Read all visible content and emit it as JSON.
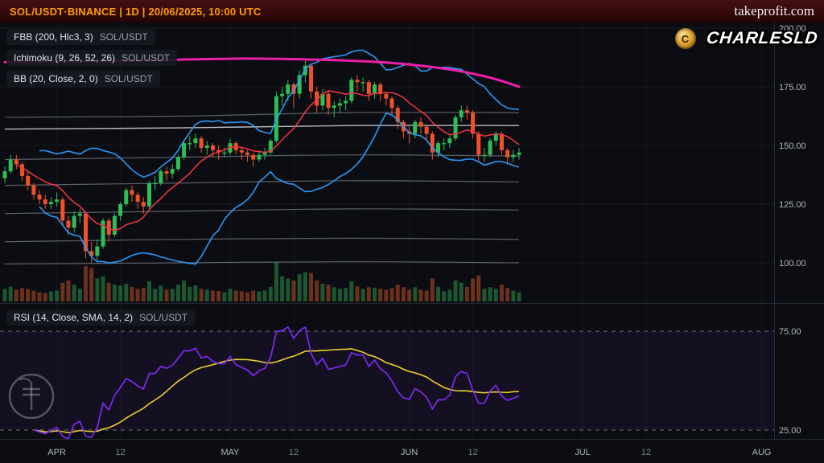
{
  "header": {
    "title": "SOL/USDT·BINANCE | 1D | 20/06/2025, 10:00 UTC",
    "brand": "takeprofit.com"
  },
  "watermarks": {
    "trader": "CHARLESLD",
    "trader_avatar_icon": "gold-coin",
    "brand_logo_icon": "takeprofit-circle-monogram"
  },
  "price_pane": {
    "legends": [
      {
        "label": "FBB (200, Hlc3, 3)",
        "pair": "SOL/USDT"
      },
      {
        "label": "Ichimoku (9, 26, 52, 26)",
        "pair": "SOL/USDT"
      },
      {
        "label": "BB (20, Close, 2, 0)",
        "pair": "SOL/USDT"
      }
    ]
  },
  "rsi_pane": {
    "legend": {
      "label": "RSI (14, Close, SMA, 14, 2)",
      "pair": "SOL/USDT"
    }
  },
  "chart_data": {
    "type": "candlestick",
    "symbol": "SOL/USDT",
    "exchange": "BINANCE",
    "interval": "1D",
    "timestamp_shown": "20/06/2025, 10:00 UTC",
    "start_date": "2025-03-23",
    "price_axis": {
      "labels": [
        "200.00",
        "175.00",
        "150.00",
        "125.00",
        "100.00"
      ],
      "values": [
        200,
        175,
        150,
        125,
        100
      ]
    },
    "rsi_axis": {
      "labels": [
        "75.00",
        "25.00"
      ],
      "values": [
        75,
        25
      ]
    },
    "time_ticks": [
      {
        "label": "APR",
        "day": 9,
        "major": true
      },
      {
        "label": "12",
        "day": 20,
        "major": false
      },
      {
        "label": "MAY",
        "day": 39,
        "major": true
      },
      {
        "label": "12",
        "day": 50,
        "major": false
      },
      {
        "label": "JUN",
        "day": 70,
        "major": true
      },
      {
        "label": "12",
        "day": 81,
        "major": false
      },
      {
        "label": "JUL",
        "day": 100,
        "major": true
      },
      {
        "label": "12",
        "day": 111,
        "major": false
      },
      {
        "label": "AUG",
        "day": 131,
        "major": true
      }
    ],
    "candles": [
      [
        136,
        141,
        134,
        139
      ],
      [
        139,
        146,
        138,
        144
      ],
      [
        144,
        146,
        140,
        142
      ],
      [
        142,
        143,
        135,
        137
      ],
      [
        137,
        139,
        131,
        133
      ],
      [
        133,
        134,
        127,
        129
      ],
      [
        129,
        131,
        125,
        127
      ],
      [
        127,
        129,
        123,
        125
      ],
      [
        125,
        128,
        123,
        126
      ],
      [
        126,
        130,
        124,
        127
      ],
      [
        127,
        128,
        116,
        118
      ],
      [
        118,
        120,
        112,
        115
      ],
      [
        115,
        122,
        113,
        120
      ],
      [
        120,
        123,
        117,
        121
      ],
      [
        121,
        122,
        102,
        105
      ],
      [
        105,
        109,
        100,
        103
      ],
      [
        103,
        110,
        101,
        107
      ],
      [
        107,
        119,
        106,
        118
      ],
      [
        118,
        119,
        109,
        112
      ],
      [
        112,
        121,
        111,
        120
      ],
      [
        120,
        126,
        118,
        125
      ],
      [
        125,
        132,
        124,
        131
      ],
      [
        131,
        133,
        126,
        129
      ],
      [
        129,
        130,
        123,
        126
      ],
      [
        126,
        128,
        121,
        124
      ],
      [
        124,
        135,
        123,
        134
      ],
      [
        134,
        137,
        131,
        134
      ],
      [
        134,
        140,
        133,
        139
      ],
      [
        139,
        141,
        135,
        138
      ],
      [
        138,
        142,
        136,
        140
      ],
      [
        140,
        146,
        139,
        145
      ],
      [
        145,
        152,
        144,
        151
      ],
      [
        151,
        154,
        148,
        151
      ],
      [
        151,
        155,
        149,
        153
      ],
      [
        153,
        154,
        147,
        149
      ],
      [
        149,
        152,
        146,
        150
      ],
      [
        150,
        151,
        145,
        148
      ],
      [
        148,
        150,
        144,
        147
      ],
      [
        147,
        149,
        145,
        147
      ],
      [
        147,
        153,
        146,
        151
      ],
      [
        151,
        152,
        146,
        148
      ],
      [
        148,
        149,
        144,
        147
      ],
      [
        147,
        148,
        143,
        146
      ],
      [
        146,
        147,
        141,
        144
      ],
      [
        144,
        148,
        143,
        146
      ],
      [
        146,
        149,
        144,
        147
      ],
      [
        147,
        153,
        146,
        152
      ],
      [
        152,
        173,
        151,
        171
      ],
      [
        171,
        175,
        167,
        172
      ],
      [
        172,
        178,
        169,
        176
      ],
      [
        176,
        177,
        166,
        172
      ],
      [
        172,
        182,
        170,
        180
      ],
      [
        180,
        186,
        177,
        184
      ],
      [
        184,
        185,
        170,
        173
      ],
      [
        173,
        175,
        164,
        167
      ],
      [
        167,
        174,
        165,
        172
      ],
      [
        172,
        173,
        163,
        166
      ],
      [
        166,
        169,
        162,
        167
      ],
      [
        167,
        170,
        164,
        168
      ],
      [
        168,
        171,
        165,
        169
      ],
      [
        169,
        179,
        168,
        178
      ],
      [
        178,
        180,
        173,
        177
      ],
      [
        177,
        179,
        173,
        177
      ],
      [
        177,
        178,
        169,
        172
      ],
      [
        172,
        177,
        170,
        176
      ],
      [
        176,
        177,
        169,
        172
      ],
      [
        172,
        173,
        167,
        170
      ],
      [
        170,
        171,
        163,
        166
      ],
      [
        166,
        167,
        157,
        160
      ],
      [
        160,
        161,
        153,
        156
      ],
      [
        156,
        158,
        151,
        155
      ],
      [
        155,
        161,
        153,
        160
      ],
      [
        160,
        162,
        155,
        158
      ],
      [
        158,
        159,
        152,
        155
      ],
      [
        155,
        156,
        144,
        147
      ],
      [
        147,
        152,
        145,
        151
      ],
      [
        151,
        153,
        148,
        151
      ],
      [
        151,
        155,
        149,
        153
      ],
      [
        153,
        163,
        152,
        162
      ],
      [
        162,
        167,
        160,
        165
      ],
      [
        165,
        167,
        161,
        164
      ],
      [
        164,
        165,
        153,
        155
      ],
      [
        155,
        156,
        143,
        146
      ],
      [
        146,
        149,
        143,
        146
      ],
      [
        146,
        153,
        145,
        152
      ],
      [
        152,
        156,
        150,
        155
      ],
      [
        155,
        156,
        146,
        148
      ],
      [
        148,
        149,
        142,
        145
      ],
      [
        145,
        148,
        143,
        146
      ],
      [
        146,
        149,
        144,
        147
      ]
    ],
    "volume": [
      0.3,
      0.35,
      0.28,
      0.32,
      0.3,
      0.26,
      0.22,
      0.2,
      0.24,
      0.26,
      0.45,
      0.5,
      0.4,
      0.3,
      0.85,
      0.8,
      0.55,
      0.6,
      0.45,
      0.4,
      0.38,
      0.42,
      0.35,
      0.3,
      0.32,
      0.48,
      0.3,
      0.38,
      0.28,
      0.3,
      0.4,
      0.5,
      0.35,
      0.38,
      0.3,
      0.28,
      0.26,
      0.25,
      0.22,
      0.3,
      0.26,
      0.24,
      0.22,
      0.26,
      0.24,
      0.26,
      0.35,
      0.95,
      0.6,
      0.55,
      0.5,
      0.65,
      0.7,
      0.68,
      0.5,
      0.42,
      0.4,
      0.34,
      0.3,
      0.32,
      0.48,
      0.36,
      0.3,
      0.34,
      0.32,
      0.3,
      0.28,
      0.32,
      0.4,
      0.34,
      0.28,
      0.34,
      0.28,
      0.26,
      0.55,
      0.35,
      0.24,
      0.28,
      0.5,
      0.45,
      0.35,
      0.55,
      0.62,
      0.3,
      0.34,
      0.3,
      0.4,
      0.32,
      0.26,
      0.22
    ],
    "colors": {
      "up": "#2ebd56",
      "down": "#f0512a",
      "vol_up": "rgba(46,160,80,0.5)",
      "vol_down": "rgba(200,85,40,0.5)",
      "bb": "#2e9fff",
      "red_ma": "#f23645",
      "fbb_basis": "#ec1fa8",
      "fbb_level": "#7e838d",
      "fbb_mid": "#d8dbe1",
      "rsi": "#7c2bf2",
      "rsi_sma": "#e8d22e",
      "grid": "rgba(255,255,255,0.055)",
      "axis_text": "#b2b5be",
      "axis_text_dim": "#7b7f8a"
    },
    "overlays": {
      "fbb_basis_points": [
        [
          0,
          185.5
        ],
        [
          20,
          186
        ],
        [
          40,
          187
        ],
        [
          55,
          186.5
        ],
        [
          65,
          185.5
        ],
        [
          72,
          184
        ],
        [
          78,
          182
        ],
        [
          83,
          179.5
        ],
        [
          86,
          177.5
        ],
        [
          89,
          175
        ]
      ],
      "fbb_levels": [
        {
          "mid": false,
          "points": [
            [
              0,
              162
            ],
            [
              30,
              162.5
            ],
            [
              60,
              164
            ],
            [
              89,
              164
            ]
          ]
        },
        {
          "mid": true,
          "points": [
            [
              0,
              157
            ],
            [
              30,
              157.5
            ],
            [
              60,
              158.5
            ],
            [
              89,
              158.5
            ]
          ]
        },
        {
          "mid": false,
          "points": [
            [
              0,
              144
            ],
            [
              30,
              145
            ],
            [
              60,
              146
            ],
            [
              89,
              145.5
            ]
          ]
        },
        {
          "mid": false,
          "points": [
            [
              0,
              133
            ],
            [
              30,
              134
            ],
            [
              60,
              135
            ],
            [
              89,
              134.5
            ]
          ]
        },
        {
          "mid": false,
          "points": [
            [
              0,
              121
            ],
            [
              30,
              122
            ],
            [
              60,
              123
            ],
            [
              89,
              122.5
            ]
          ]
        },
        {
          "mid": false,
          "points": [
            [
              0,
              109
            ],
            [
              30,
              110
            ],
            [
              60,
              110.5
            ],
            [
              89,
              110
            ]
          ]
        },
        {
          "mid": false,
          "points": [
            [
              0,
              99.5
            ],
            [
              30,
              100
            ],
            [
              60,
              100.5
            ],
            [
              89,
              100
            ]
          ]
        }
      ],
      "bb": {
        "period": 20,
        "mult": 2
      },
      "red_ma_period": 10
    },
    "rsi": {
      "period": 14,
      "sma": 14,
      "upper_band": 75,
      "lower_band": 25,
      "range": [
        0,
        100
      ]
    }
  }
}
